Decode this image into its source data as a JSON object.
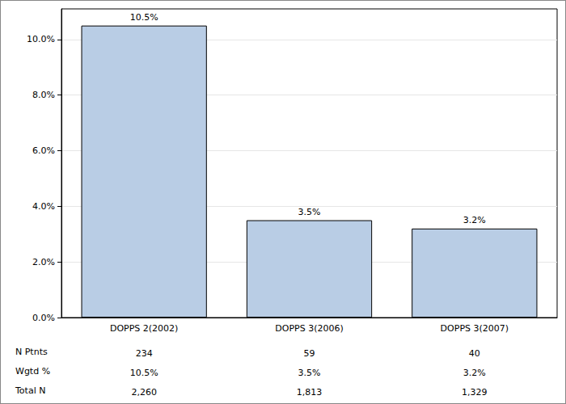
{
  "chart_data": {
    "type": "bar",
    "categories": [
      "DOPPS 2(2002)",
      "DOPPS 3(2006)",
      "DOPPS 3(2007)"
    ],
    "values": [
      10.5,
      3.5,
      3.2
    ],
    "value_labels": [
      "10.5%",
      "3.5%",
      "3.2%"
    ],
    "data_labels": true,
    "color": "#b9cde5",
    "ylim": [
      0,
      11.1
    ],
    "yticks": [
      {
        "value": 0,
        "label": "0.0%"
      },
      {
        "value": 2,
        "label": "2.0%"
      },
      {
        "value": 4,
        "label": "4.0%"
      },
      {
        "value": 6,
        "label": "6.0%"
      },
      {
        "value": 8,
        "label": "8.0%"
      },
      {
        "value": 10,
        "label": "10.0%"
      }
    ],
    "grid": true,
    "table": {
      "rows": [
        {
          "label": "N Ptnts",
          "values": [
            "234",
            "59",
            "40"
          ]
        },
        {
          "label": "Wgtd %",
          "values": [
            "10.5%",
            "3.5%",
            "3.2%"
          ]
        },
        {
          "label": "Total N",
          "values": [
            "2,260",
            "1,813",
            "1,329"
          ]
        }
      ]
    }
  }
}
